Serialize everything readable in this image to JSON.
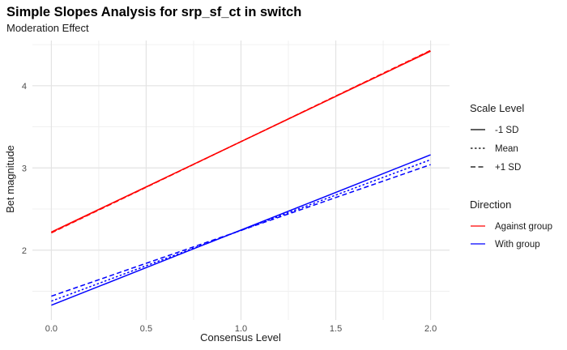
{
  "chart_data": {
    "type": "line",
    "title": "Simple Slopes Analysis for srp_sf_ct in switch",
    "subtitle": "Moderation Effect",
    "xlabel": "Consensus Level",
    "ylabel": "Bet magnitude",
    "xlim": [
      -0.1,
      2.1
    ],
    "ylim": [
      1.15,
      4.55
    ],
    "x_ticks": [
      "0.0",
      "0.5",
      "1.0",
      "1.5",
      "2.0"
    ],
    "x_tick_values": [
      0,
      0.5,
      1,
      1.5,
      2
    ],
    "y_ticks": [
      "2",
      "3",
      "4"
    ],
    "y_tick_values": [
      2,
      3,
      4
    ],
    "grid": true,
    "legend_placement": "right",
    "legends": {
      "linetype": {
        "title": "Scale Level",
        "entries": [
          {
            "label": "-1 SD",
            "dash": "solid"
          },
          {
            "label": "Mean",
            "dash": "dotted"
          },
          {
            "label": "+1 SD",
            "dash": "dashed"
          }
        ]
      },
      "color": {
        "title": "Direction",
        "entries": [
          {
            "label": "Against group",
            "color": "#ff0000"
          },
          {
            "label": "With group",
            "color": "#0000ff"
          }
        ]
      }
    },
    "series": [
      {
        "direction": "Against group",
        "scale": "-1 SD",
        "color": "#ff0000",
        "dash": "solid",
        "x": [
          0,
          2
        ],
        "y": [
          2.22,
          4.42
        ]
      },
      {
        "direction": "Against group",
        "scale": "Mean",
        "color": "#ff0000",
        "dash": "dotted",
        "x": [
          0,
          2
        ],
        "y": [
          2.215,
          4.425
        ]
      },
      {
        "direction": "Against group",
        "scale": "+1 SD",
        "color": "#ff0000",
        "dash": "dashed",
        "x": [
          0,
          2
        ],
        "y": [
          2.21,
          4.43
        ]
      },
      {
        "direction": "With group",
        "scale": "-1 SD",
        "color": "#0000ff",
        "dash": "solid",
        "x": [
          0,
          2
        ],
        "y": [
          1.33,
          3.16
        ]
      },
      {
        "direction": "With group",
        "scale": "Mean",
        "color": "#0000ff",
        "dash": "dotted",
        "x": [
          0,
          2
        ],
        "y": [
          1.38,
          3.1
        ]
      },
      {
        "direction": "With group",
        "scale": "+1 SD",
        "color": "#0000ff",
        "dash": "dashed",
        "x": [
          0,
          2
        ],
        "y": [
          1.44,
          3.04
        ]
      }
    ]
  }
}
